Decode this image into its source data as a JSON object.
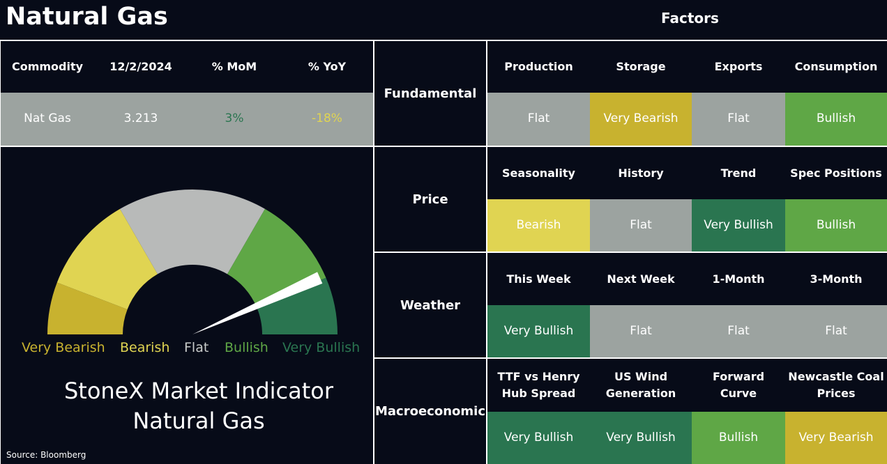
{
  "title": "Natural Gas",
  "factors_title": "Factors",
  "source": "Source: Bloomberg",
  "colors": {
    "very_bearish": "#c8b22f",
    "bearish": "#e0d452",
    "flat": "#9ca3a0",
    "bullish": "#5fa746",
    "very_bullish": "#2a7550",
    "background": "#070b18"
  },
  "commodity_table": {
    "headers": [
      "Commodity",
      "12/2/2024",
      "% MoM",
      "% YoY"
    ],
    "row": {
      "commodity": "Nat Gas",
      "price": "3.213",
      "mom": "3%",
      "yoy": "-18%",
      "mom_color": "#2a7550",
      "yoy_color": "#e0d452"
    }
  },
  "gauge": {
    "labels": [
      "Very Bearish",
      "Bearish",
      "Flat",
      "Bullish",
      "Very Bullish"
    ],
    "indicator_level": "Bullish / Very Bullish boundary",
    "title_line1": "StoneX Market Indicator",
    "title_line2": "Natural Gas"
  },
  "categories": [
    {
      "name": "Fundamental",
      "factors": [
        {
          "label": "Production",
          "value": "Flat",
          "status": "flat"
        },
        {
          "label": "Storage",
          "value": "Very Bearish",
          "status": "very_bearish"
        },
        {
          "label": "Exports",
          "value": "Flat",
          "status": "flat"
        },
        {
          "label": "Consumption",
          "value": "Bullish",
          "status": "bullish"
        }
      ]
    },
    {
      "name": "Price",
      "factors": [
        {
          "label": "Seasonality",
          "value": "Bearish",
          "status": "bearish"
        },
        {
          "label": "History",
          "value": "Flat",
          "status": "flat"
        },
        {
          "label": "Trend",
          "value": "Very Bullish",
          "status": "very_bullish"
        },
        {
          "label": "Spec Positions",
          "value": "Bullish",
          "status": "bullish"
        }
      ]
    },
    {
      "name": "Weather",
      "factors": [
        {
          "label": "This Week",
          "value": "Very Bullish",
          "status": "very_bullish"
        },
        {
          "label": "Next Week",
          "value": "Flat",
          "status": "flat"
        },
        {
          "label": "1-Month",
          "value": "Flat",
          "status": "flat"
        },
        {
          "label": "3-Month",
          "value": "Flat",
          "status": "flat"
        }
      ]
    },
    {
      "name": "Macroeconomic",
      "factors": [
        {
          "label": "TTF vs Henry Hub Spread",
          "value": "Very Bullish",
          "status": "very_bullish"
        },
        {
          "label": "US Wind Generation",
          "value": "Very Bullish",
          "status": "very_bullish"
        },
        {
          "label": "Forward Curve",
          "value": "Bullish",
          "status": "bullish"
        },
        {
          "label": "Newcastle Coal Prices",
          "value": "Very Bearish",
          "status": "very_bearish"
        }
      ]
    }
  ]
}
